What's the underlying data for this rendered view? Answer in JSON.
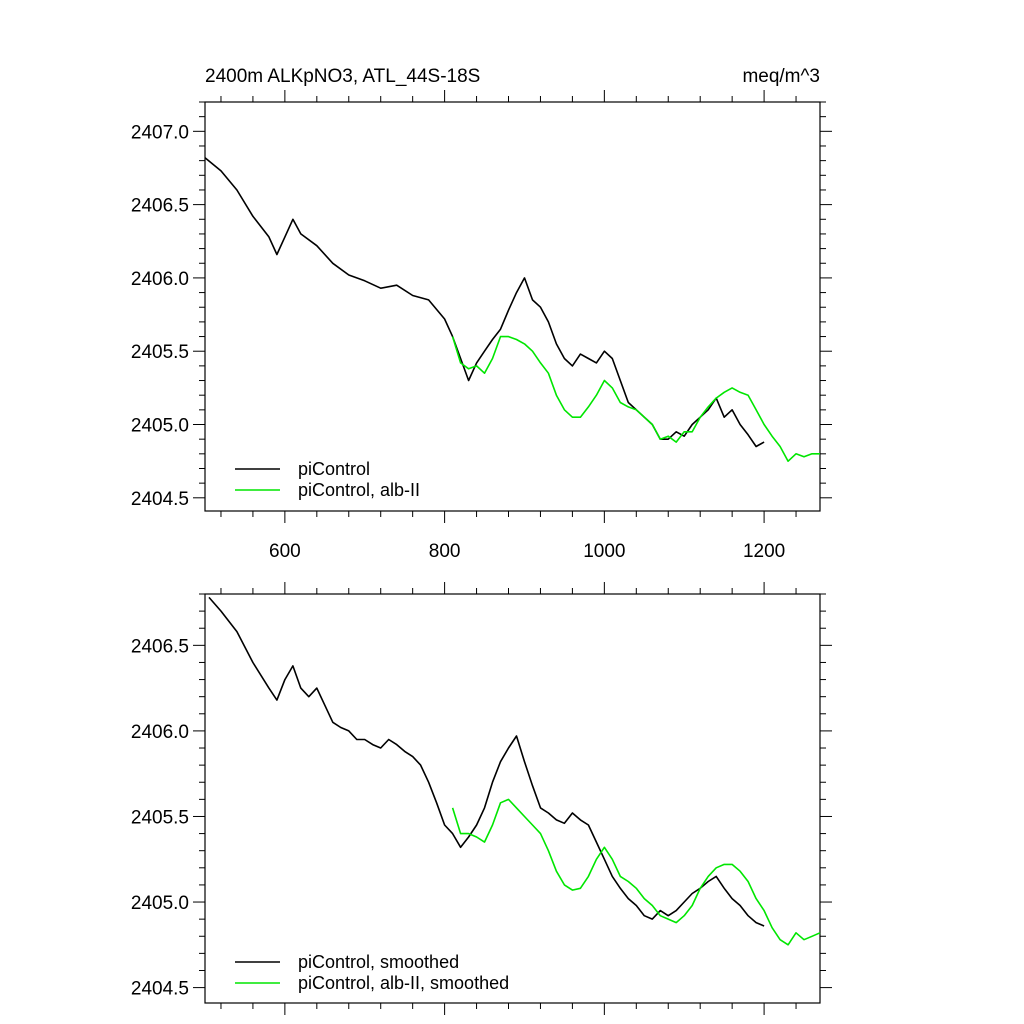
{
  "colors": {
    "piControl": "#000000",
    "alb_II": "#00e600"
  },
  "chart_data": [
    {
      "type": "line",
      "title": "2400m ALKpNO3, ATL_44S-18S",
      "units": "meq/m^3",
      "xlim": [
        500,
        1270
      ],
      "ylim": [
        2404.41,
        2407.2
      ],
      "xticks": [
        600,
        800,
        1000,
        1200
      ],
      "xtick_labels": [
        "600",
        "800",
        "1000",
        "1200"
      ],
      "yticks": [
        2404.5,
        2405.0,
        2405.5,
        2406.0,
        2406.5,
        2407.0
      ],
      "ytick_labels": [
        "2404.5",
        "2405.0",
        "2405.5",
        "2406.0",
        "2406.5",
        "2407.0"
      ],
      "legend": "bottom-left",
      "series": [
        {
          "name": "piControl",
          "color": "#000000",
          "x": [
            500,
            520,
            540,
            560,
            580,
            590,
            600,
            610,
            620,
            640,
            660,
            680,
            700,
            720,
            740,
            760,
            780,
            800,
            810,
            820,
            830,
            840,
            850,
            860,
            870,
            880,
            890,
            900,
            910,
            920,
            930,
            940,
            950,
            960,
            970,
            980,
            990,
            1000,
            1010,
            1020,
            1030,
            1040,
            1050,
            1060,
            1070,
            1080,
            1090,
            1100,
            1110,
            1120,
            1130,
            1140,
            1150,
            1160,
            1170,
            1180,
            1190,
            1200
          ],
          "y": [
            2406.82,
            2406.73,
            2406.6,
            2406.42,
            2406.28,
            2406.16,
            2406.28,
            2406.4,
            2406.3,
            2406.22,
            2406.1,
            2406.02,
            2405.98,
            2405.93,
            2405.95,
            2405.88,
            2405.85,
            2405.72,
            2405.6,
            2405.45,
            2405.3,
            2405.42,
            2405.5,
            2405.58,
            2405.65,
            2405.78,
            2405.9,
            2406.0,
            2405.85,
            2405.8,
            2405.7,
            2405.55,
            2405.45,
            2405.4,
            2405.48,
            2405.45,
            2405.42,
            2405.5,
            2405.45,
            2405.3,
            2405.15,
            2405.1,
            2405.05,
            2405.0,
            2404.9,
            2404.9,
            2404.95,
            2404.92,
            2405.0,
            2405.05,
            2405.1,
            2405.18,
            2405.05,
            2405.1,
            2405.0,
            2404.93,
            2404.85,
            2404.88
          ]
        },
        {
          "name": "piControl, alb-II",
          "color": "#00e600",
          "x": [
            810,
            820,
            830,
            840,
            850,
            860,
            870,
            880,
            890,
            900,
            910,
            920,
            930,
            940,
            950,
            960,
            970,
            980,
            990,
            1000,
            1010,
            1020,
            1030,
            1040,
            1050,
            1060,
            1070,
            1080,
            1090,
            1100,
            1110,
            1120,
            1130,
            1140,
            1150,
            1160,
            1170,
            1180,
            1190,
            1200,
            1210,
            1220,
            1230,
            1240,
            1250,
            1260,
            1270
          ],
          "y": [
            2405.6,
            2405.42,
            2405.38,
            2405.4,
            2405.35,
            2405.45,
            2405.6,
            2405.6,
            2405.58,
            2405.55,
            2405.5,
            2405.42,
            2405.35,
            2405.2,
            2405.1,
            2405.05,
            2405.05,
            2405.12,
            2405.2,
            2405.3,
            2405.25,
            2405.15,
            2405.12,
            2405.1,
            2405.05,
            2405.0,
            2404.9,
            2404.92,
            2404.88,
            2404.95,
            2404.95,
            2405.05,
            2405.12,
            2405.18,
            2405.22,
            2405.25,
            2405.22,
            2405.2,
            2405.1,
            2405.0,
            2404.92,
            2404.85,
            2404.75,
            2404.8,
            2404.78,
            2404.8,
            2404.8
          ]
        }
      ]
    },
    {
      "type": "line",
      "title": "",
      "xlim": [
        500,
        1270
      ],
      "ylim": [
        2404.41,
        2406.8
      ],
      "xticks": [
        600,
        800,
        1000,
        1200
      ],
      "xtick_labels": [],
      "yticks": [
        2404.5,
        2405.0,
        2405.5,
        2406.0,
        2406.5
      ],
      "ytick_labels": [
        "2404.5",
        "2405.0",
        "2405.5",
        "2406.0",
        "2406.5"
      ],
      "legend": "bottom-left",
      "series": [
        {
          "name": "piControl, smoothed",
          "color": "#000000",
          "x": [
            505,
            520,
            540,
            560,
            580,
            590,
            600,
            610,
            620,
            630,
            640,
            650,
            660,
            670,
            680,
            690,
            700,
            710,
            720,
            730,
            740,
            750,
            760,
            770,
            780,
            790,
            800,
            810,
            820,
            830,
            840,
            850,
            860,
            870,
            880,
            890,
            900,
            910,
            920,
            930,
            940,
            950,
            960,
            970,
            980,
            990,
            1000,
            1010,
            1020,
            1030,
            1040,
            1050,
            1060,
            1070,
            1080,
            1090,
            1100,
            1110,
            1120,
            1130,
            1140,
            1150,
            1160,
            1170,
            1180,
            1190,
            1200
          ],
          "y": [
            2406.78,
            2406.7,
            2406.58,
            2406.4,
            2406.25,
            2406.18,
            2406.3,
            2406.38,
            2406.25,
            2406.2,
            2406.25,
            2406.15,
            2406.05,
            2406.02,
            2406.0,
            2405.95,
            2405.95,
            2405.92,
            2405.9,
            2405.95,
            2405.92,
            2405.88,
            2405.85,
            2405.8,
            2405.7,
            2405.58,
            2405.45,
            2405.4,
            2405.32,
            2405.38,
            2405.45,
            2405.55,
            2405.7,
            2405.82,
            2405.9,
            2405.97,
            2405.82,
            2405.68,
            2405.55,
            2405.52,
            2405.48,
            2405.46,
            2405.52,
            2405.48,
            2405.45,
            2405.35,
            2405.25,
            2405.15,
            2405.08,
            2405.02,
            2404.98,
            2404.92,
            2404.9,
            2404.95,
            2404.92,
            2404.95,
            2405.0,
            2405.05,
            2405.08,
            2405.12,
            2405.15,
            2405.08,
            2405.02,
            2404.98,
            2404.92,
            2404.88,
            2404.86
          ]
        },
        {
          "name": "piControl, alb-II, smoothed",
          "color": "#00e600",
          "x": [
            810,
            820,
            830,
            840,
            850,
            860,
            870,
            880,
            890,
            900,
            910,
            920,
            930,
            940,
            950,
            960,
            970,
            980,
            990,
            1000,
            1010,
            1020,
            1030,
            1040,
            1050,
            1060,
            1070,
            1080,
            1090,
            1100,
            1110,
            1120,
            1130,
            1140,
            1150,
            1160,
            1170,
            1180,
            1190,
            1200,
            1210,
            1220,
            1230,
            1240,
            1250,
            1260,
            1270
          ],
          "y": [
            2405.55,
            2405.4,
            2405.4,
            2405.38,
            2405.35,
            2405.45,
            2405.58,
            2405.6,
            2405.55,
            2405.5,
            2405.45,
            2405.4,
            2405.3,
            2405.18,
            2405.1,
            2405.07,
            2405.08,
            2405.15,
            2405.25,
            2405.32,
            2405.25,
            2405.15,
            2405.12,
            2405.08,
            2405.02,
            2404.98,
            2404.92,
            2404.9,
            2404.88,
            2404.92,
            2404.98,
            2405.08,
            2405.15,
            2405.2,
            2405.22,
            2405.22,
            2405.18,
            2405.12,
            2405.02,
            2404.95,
            2404.85,
            2404.78,
            2404.75,
            2404.82,
            2404.78,
            2404.8,
            2404.82
          ]
        }
      ]
    }
  ]
}
